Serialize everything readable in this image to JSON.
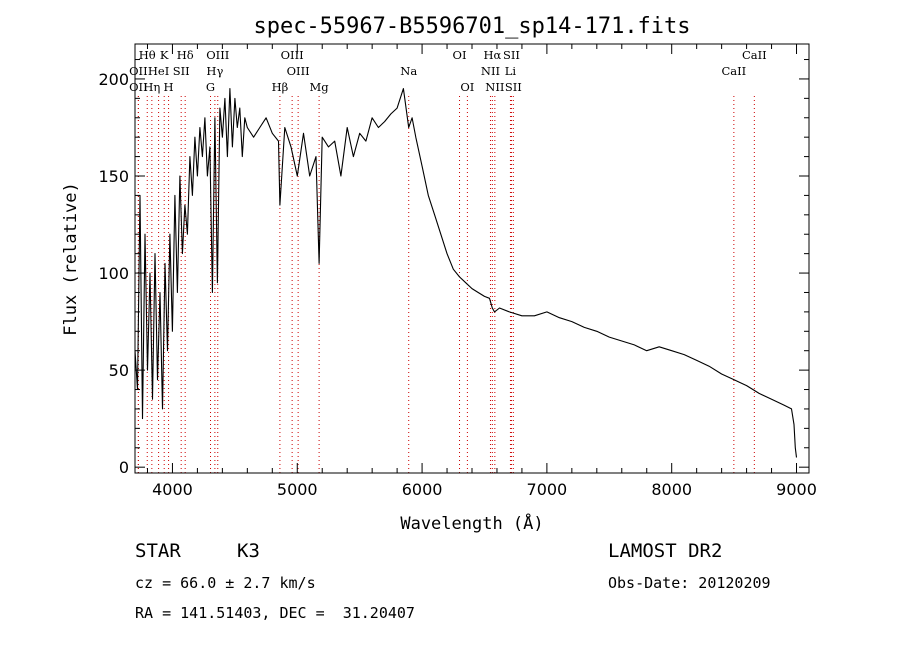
{
  "chart_data": {
    "type": "line",
    "title": "spec-55967-B5596701_sp14-171.fits",
    "xlabel": "Wavelength (Å)",
    "ylabel": "Flux (relative)",
    "xlim": [
      3700,
      9100
    ],
    "ylim": [
      -3,
      218
    ],
    "x_ticks": [
      4000,
      5000,
      6000,
      7000,
      8000,
      9000
    ],
    "y_ticks": [
      0,
      50,
      100,
      150,
      200
    ],
    "grid": false,
    "line_color": "#000000",
    "marker_color": "#cc0000",
    "series": [
      {
        "x": [
          3700,
          3720,
          3740,
          3760,
          3780,
          3800,
          3820,
          3840,
          3860,
          3880,
          3900,
          3920,
          3940,
          3960,
          3980,
          4000,
          4020,
          4040,
          4060,
          4080,
          4100,
          4120,
          4140,
          4160,
          4180,
          4200,
          4220,
          4240,
          4260,
          4280,
          4300,
          4320,
          4340,
          4360,
          4380,
          4400,
          4420,
          4440,
          4460,
          4480,
          4500,
          4520,
          4540,
          4560,
          4580,
          4600,
          4650,
          4700,
          4750,
          4800,
          4850,
          4861,
          4900,
          4950,
          5000,
          5050,
          5100,
          5150,
          5175,
          5200,
          5250,
          5300,
          5350,
          5400,
          5450,
          5500,
          5550,
          5600,
          5650,
          5700,
          5750,
          5800,
          5850,
          5893,
          5920,
          5950,
          6000,
          6050,
          6100,
          6150,
          6200,
          6250,
          6300,
          6350,
          6400,
          6450,
          6500,
          6540,
          6563,
          6580,
          6620,
          6700,
          6800,
          6900,
          7000,
          7100,
          7200,
          7300,
          7400,
          7500,
          7600,
          7700,
          7800,
          7900,
          8000,
          8100,
          8200,
          8300,
          8400,
          8500,
          8600,
          8700,
          8800,
          8900,
          8960,
          8980,
          8990,
          9000
        ],
        "y": [
          60,
          40,
          140,
          25,
          120,
          50,
          100,
          35,
          110,
          45,
          90,
          30,
          105,
          60,
          120,
          70,
          140,
          90,
          150,
          110,
          135,
          120,
          160,
          140,
          170,
          150,
          175,
          160,
          180,
          150,
          165,
          90,
          180,
          95,
          185,
          170,
          190,
          160,
          195,
          165,
          190,
          175,
          185,
          160,
          180,
          175,
          170,
          175,
          180,
          172,
          168,
          135,
          175,
          165,
          150,
          172,
          150,
          160,
          105,
          170,
          165,
          168,
          150,
          175,
          160,
          172,
          168,
          180,
          175,
          178,
          182,
          185,
          195,
          175,
          180,
          170,
          155,
          140,
          130,
          120,
          110,
          102,
          98,
          95,
          92,
          90,
          88,
          87,
          82,
          80,
          82,
          80,
          78,
          78,
          80,
          77,
          75,
          72,
          70,
          67,
          65,
          63,
          60,
          62,
          60,
          58,
          55,
          52,
          48,
          45,
          42,
          38,
          35,
          32,
          30,
          22,
          10,
          5
        ]
      }
    ],
    "line_markers": [
      {
        "label": "OII",
        "wl": 3727,
        "row": 3
      },
      {
        "label": "Hθ",
        "wl": 3798,
        "row": 1
      },
      {
        "label": "OII",
        "wl": 3727,
        "row": 2
      },
      {
        "label": "Hη",
        "wl": 3835,
        "row": 3
      },
      {
        "label": "K",
        "wl": 3934,
        "row": 1
      },
      {
        "label": "HeI",
        "wl": 3889,
        "row": 2
      },
      {
        "label": "H",
        "wl": 3969,
        "row": 3
      },
      {
        "label": "SII",
        "wl": 4070,
        "row": 2
      },
      {
        "label": "Hδ",
        "wl": 4102,
        "row": 1
      },
      {
        "label": "OIII",
        "wl": 4363,
        "row": 1
      },
      {
        "label": "Hγ",
        "wl": 4340,
        "row": 2
      },
      {
        "label": "G",
        "wl": 4305,
        "row": 3
      },
      {
        "label": "Hβ",
        "wl": 4861,
        "row": 3
      },
      {
        "label": "OIII",
        "wl": 4959,
        "row": 1
      },
      {
        "label": "OIII",
        "wl": 5007,
        "row": 2
      },
      {
        "label": "Mg",
        "wl": 5175,
        "row": 3
      },
      {
        "label": "Na",
        "wl": 5893,
        "row": 2
      },
      {
        "label": "OI",
        "wl": 6300,
        "row": 1
      },
      {
        "label": "OI",
        "wl": 6363,
        "row": 3
      },
      {
        "label": "Hα",
        "wl": 6563,
        "row": 1
      },
      {
        "label": "NII",
        "wl": 6548,
        "row": 2
      },
      {
        "label": "NII",
        "wl": 6583,
        "row": 3
      },
      {
        "label": "SII",
        "wl": 6716,
        "row": 1
      },
      {
        "label": "Li",
        "wl": 6708,
        "row": 2
      },
      {
        "label": "SII",
        "wl": 6731,
        "row": 3
      },
      {
        "label": "CaII",
        "wl": 8662,
        "row": 1
      },
      {
        "label": "CaII",
        "wl": 8498,
        "row": 2
      }
    ]
  },
  "info": {
    "object_class": "STAR",
    "subclass": "K3",
    "survey": "LAMOST DR2",
    "cz": "cz = 66.0 ± 2.7 km/s",
    "obs_date": "Obs-Date: 20120209",
    "coords": "RA = 141.51403, DEC =  31.20407"
  }
}
